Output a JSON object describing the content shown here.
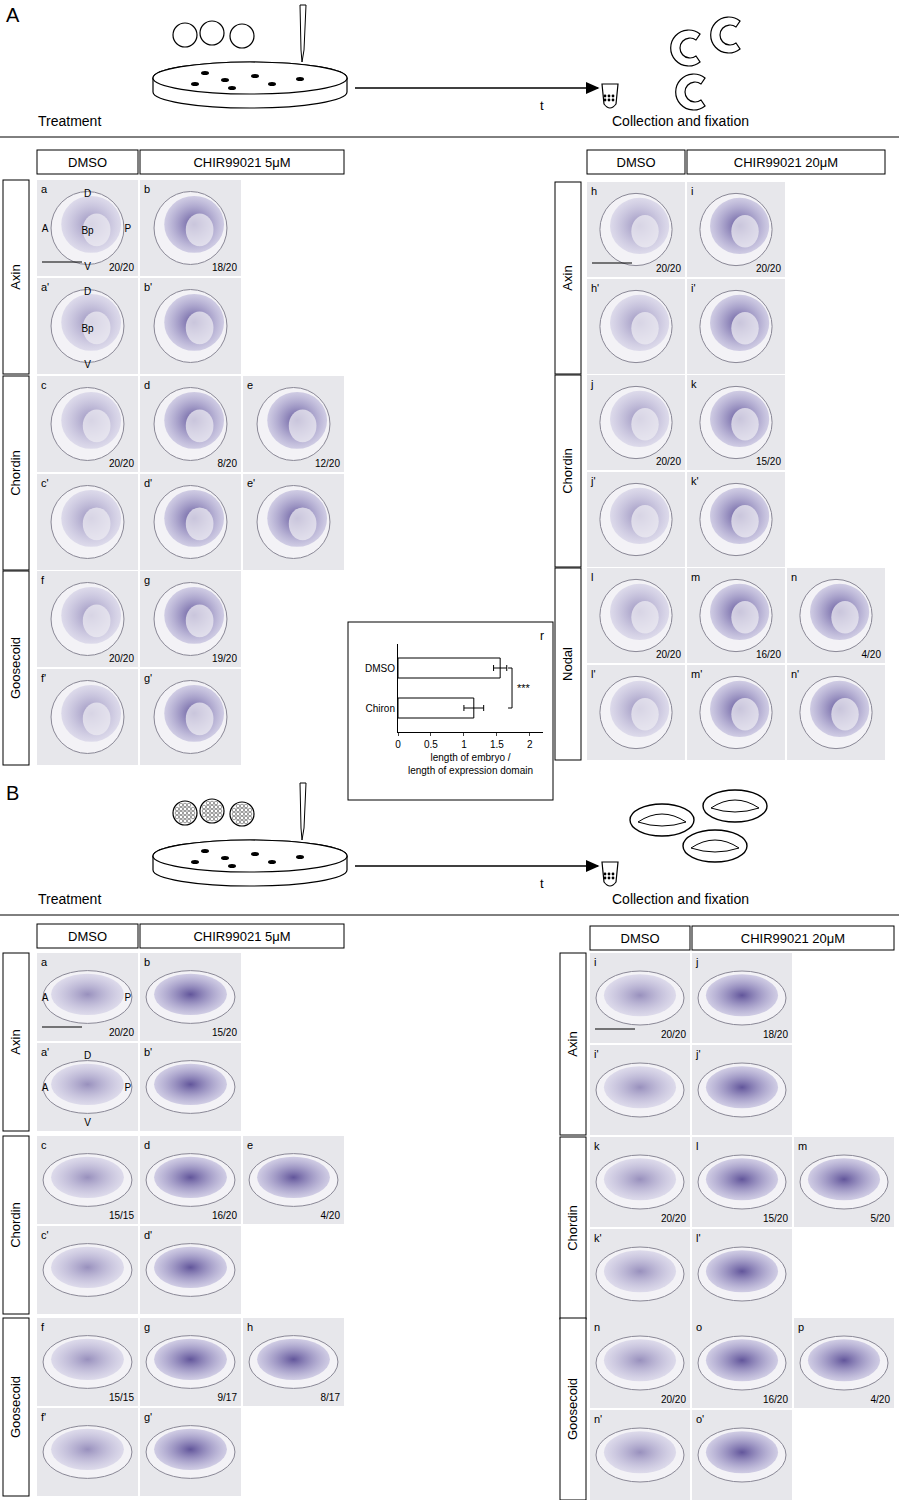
{
  "figure": {
    "sections": [
      {
        "label": "A",
        "schematic": {
          "left": "Treatment",
          "time": "t",
          "right": "Collection and fixation"
        },
        "blocks": [
          {
            "columns": [
              "DMSO",
              "CHIR99021 5μM"
            ],
            "groups": [
              {
                "gene": "Axin",
                "rows": [
                  [
                    {
                      "id": "a",
                      "count": "20/20",
                      "marks": [
                        "D",
                        "A",
                        "Bp",
                        "P",
                        "V"
                      ]
                    },
                    {
                      "id": "b",
                      "count": "18/20"
                    }
                  ],
                  [
                    {
                      "id": "a'",
                      "marks": [
                        "D",
                        "Bp",
                        "V"
                      ]
                    },
                    {
                      "id": "b'"
                    }
                  ]
                ]
              },
              {
                "gene": "Chordin",
                "rows": [
                  [
                    {
                      "id": "c",
                      "count": "20/20"
                    },
                    {
                      "id": "d",
                      "count": "8/20"
                    },
                    {
                      "id": "e",
                      "count": "12/20"
                    }
                  ],
                  [
                    {
                      "id": "c'"
                    },
                    {
                      "id": "d'"
                    },
                    {
                      "id": "e'"
                    }
                  ]
                ]
              },
              {
                "gene": "Goosecoid",
                "rows": [
                  [
                    {
                      "id": "f",
                      "count": "20/20"
                    },
                    {
                      "id": "g",
                      "count": "19/20"
                    }
                  ],
                  [
                    {
                      "id": "f'"
                    },
                    {
                      "id": "g'"
                    }
                  ]
                ]
              }
            ]
          },
          {
            "columns": [
              "DMSO",
              "CHIR99021 20μM"
            ],
            "groups": [
              {
                "gene": "Axin",
                "rows": [
                  [
                    {
                      "id": "h",
                      "count": "20/20"
                    },
                    {
                      "id": "i",
                      "count": "20/20"
                    }
                  ],
                  [
                    {
                      "id": "h'"
                    },
                    {
                      "id": "i'"
                    }
                  ]
                ]
              },
              {
                "gene": "Chordin",
                "rows": [
                  [
                    {
                      "id": "j",
                      "count": "20/20"
                    },
                    {
                      "id": "k",
                      "count": "15/20"
                    }
                  ],
                  [
                    {
                      "id": "j'"
                    },
                    {
                      "id": "k'"
                    }
                  ]
                ]
              },
              {
                "gene": "Nodal",
                "rows": [
                  [
                    {
                      "id": "l",
                      "count": "20/20"
                    },
                    {
                      "id": "m",
                      "count": "16/20"
                    },
                    {
                      "id": "n",
                      "count": "4/20"
                    }
                  ],
                  [
                    {
                      "id": "l'"
                    },
                    {
                      "id": "m'"
                    },
                    {
                      "id": "n'"
                    }
                  ]
                ]
              }
            ]
          }
        ]
      },
      {
        "label": "B",
        "schematic": {
          "left": "Treatment",
          "time": "t",
          "right": "Collection and fixation"
        },
        "blocks": [
          {
            "columns": [
              "DMSO",
              "CHIR99021 5μM"
            ],
            "groups": [
              {
                "gene": "Axin",
                "rows": [
                  [
                    {
                      "id": "a",
                      "count": "20/20",
                      "marks": [
                        "A",
                        "P"
                      ]
                    },
                    {
                      "id": "b",
                      "count": "15/20"
                    }
                  ],
                  [
                    {
                      "id": "a'",
                      "marks": [
                        "D",
                        "A",
                        "P",
                        "V"
                      ]
                    },
                    {
                      "id": "b'"
                    }
                  ]
                ]
              },
              {
                "gene": "Chordin",
                "rows": [
                  [
                    {
                      "id": "c",
                      "count": "15/15"
                    },
                    {
                      "id": "d",
                      "count": "16/20"
                    },
                    {
                      "id": "e",
                      "count": "4/20"
                    }
                  ],
                  [
                    {
                      "id": "c'"
                    },
                    {
                      "id": "d'"
                    }
                  ]
                ]
              },
              {
                "gene": "Goosecoid",
                "rows": [
                  [
                    {
                      "id": "f",
                      "count": "15/15"
                    },
                    {
                      "id": "g",
                      "count": "9/17"
                    },
                    {
                      "id": "h",
                      "count": "8/17"
                    }
                  ],
                  [
                    {
                      "id": "f'"
                    },
                    {
                      "id": "g'"
                    }
                  ]
                ]
              }
            ]
          },
          {
            "columns": [
              "DMSO",
              "CHIR99021 20μM"
            ],
            "groups": [
              {
                "gene": "Axin",
                "rows": [
                  [
                    {
                      "id": "i",
                      "count": "20/20"
                    },
                    {
                      "id": "j",
                      "count": "18/20"
                    }
                  ],
                  [
                    {
                      "id": "i'"
                    },
                    {
                      "id": "j'"
                    }
                  ]
                ]
              },
              {
                "gene": "Chordin",
                "rows": [
                  [
                    {
                      "id": "k",
                      "count": "20/20"
                    },
                    {
                      "id": "l",
                      "count": "15/20"
                    },
                    {
                      "id": "m",
                      "count": "5/20"
                    }
                  ],
                  [
                    {
                      "id": "k'"
                    },
                    {
                      "id": "l'"
                    }
                  ]
                ]
              },
              {
                "gene": "Goosecoid",
                "rows": [
                  [
                    {
                      "id": "n",
                      "count": "20/20"
                    },
                    {
                      "id": "o",
                      "count": "16/20"
                    },
                    {
                      "id": "p",
                      "count": "4/20"
                    }
                  ],
                  [
                    {
                      "id": "n'"
                    },
                    {
                      "id": "o'"
                    }
                  ]
                ]
              }
            ]
          }
        ]
      }
    ]
  },
  "chart_data": {
    "type": "bar",
    "panel": "r",
    "orientation": "horizontal",
    "categories": [
      "DMSO",
      "Chiron"
    ],
    "values": [
      1.55,
      1.15
    ],
    "errors": [
      0.1,
      0.15
    ],
    "color": "#ffffff",
    "x_label": [
      "length of embryo /",
      "length of expression domain"
    ],
    "xlim": [
      0,
      2.2
    ],
    "xticks": [
      0,
      0.5,
      1,
      1.5,
      2
    ],
    "grid": false,
    "annotation": "***"
  }
}
